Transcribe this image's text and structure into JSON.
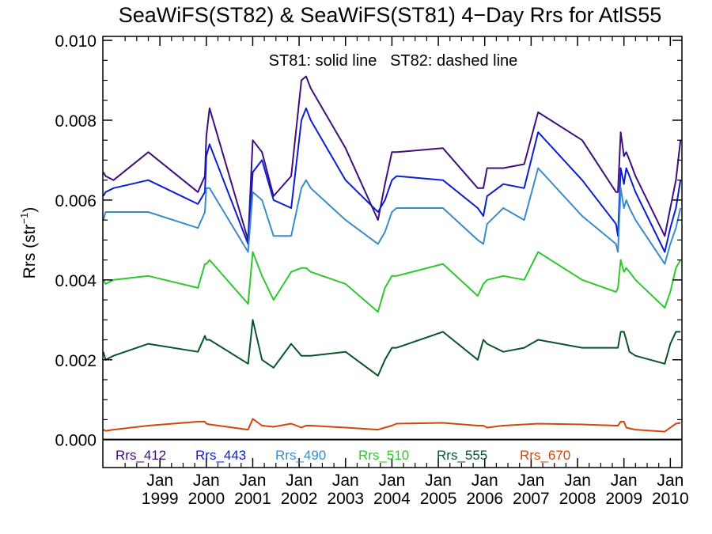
{
  "chart_data": {
    "type": "line",
    "title": "SeaWiFS(ST82) & SeaWiFS(ST81) 4−Day Rrs for AtlS55",
    "note": "ST81: solid line   ST82: dashed line",
    "xlabel": "",
    "ylabel": "Rrs (str",
    "ylabel_sup": "−1",
    "ylabel_close": ")",
    "ylim": [
      -0.0007,
      0.0101
    ],
    "xlim": [
      1997.77,
      2010.25
    ],
    "y_ticks": [
      {
        "v": 0.0,
        "label": "0.000"
      },
      {
        "v": 0.002,
        "label": "0.002"
      },
      {
        "v": 0.004,
        "label": "0.004"
      },
      {
        "v": 0.006,
        "label": "0.006"
      },
      {
        "v": 0.008,
        "label": "0.008"
      },
      {
        "v": 0.01,
        "label": "0.010"
      }
    ],
    "x_ticks": [
      {
        "v": 1999.0,
        "month": "Jan",
        "year": "1999"
      },
      {
        "v": 2000.0,
        "month": "Jan",
        "year": "2000"
      },
      {
        "v": 2001.0,
        "month": "Jan",
        "year": "2001"
      },
      {
        "v": 2002.0,
        "month": "Jan",
        "year": "2002"
      },
      {
        "v": 2003.0,
        "month": "Jan",
        "year": "2003"
      },
      {
        "v": 2004.0,
        "month": "Jan",
        "year": "2004"
      },
      {
        "v": 2005.0,
        "month": "Jan",
        "year": "2005"
      },
      {
        "v": 2006.0,
        "month": "Jan",
        "year": "2006"
      },
      {
        "v": 2007.0,
        "month": "Jan",
        "year": "2007"
      },
      {
        "v": 2008.0,
        "month": "Jan",
        "year": "2008"
      },
      {
        "v": 2009.0,
        "month": "Jan",
        "year": "2009"
      },
      {
        "v": 2010.0,
        "month": "Jan",
        "year": "2010"
      }
    ],
    "x": [
      1997.78,
      1997.83,
      1998.0,
      1998.75,
      1999.82,
      1999.97,
      2000.0,
      2000.07,
      2000.9,
      2001.0,
      2001.2,
      2001.45,
      2001.83,
      2002.05,
      2002.15,
      2002.25,
      2003.0,
      2003.7,
      2003.85,
      2004.0,
      2004.1,
      2005.1,
      2005.85,
      2005.97,
      2006.05,
      2006.4,
      2006.85,
      2007.15,
      2008.1,
      2008.83,
      2008.87,
      2008.93,
      2009.0,
      2009.05,
      2009.12,
      2009.25,
      2009.88,
      2010.0,
      2010.12,
      2010.22
    ],
    "series": [
      {
        "name": "Rrs_412",
        "color": "#3f0f7a",
        "values": [
          0.0067,
          0.0066,
          0.0065,
          0.0072,
          0.0062,
          0.0066,
          0.0076,
          0.0083,
          0.005,
          0.0075,
          0.0072,
          0.0061,
          0.0066,
          0.009,
          0.0091,
          0.0088,
          0.0073,
          0.0055,
          0.0064,
          0.0072,
          0.0072,
          0.0073,
          0.0063,
          0.0063,
          0.0068,
          0.0068,
          0.0069,
          0.0082,
          0.0075,
          0.0062,
          0.0062,
          0.0077,
          0.0071,
          0.0072,
          0.007,
          0.0066,
          0.0051,
          0.0058,
          0.0065,
          0.0075
        ]
      },
      {
        "name": "Rrs_443",
        "color": "#0a1ed2",
        "values": [
          0.0061,
          0.0062,
          0.0063,
          0.0065,
          0.0059,
          0.0062,
          0.0071,
          0.0074,
          0.0049,
          0.0067,
          0.007,
          0.006,
          0.0058,
          0.008,
          0.0083,
          0.008,
          0.0065,
          0.0057,
          0.006,
          0.0065,
          0.0066,
          0.0065,
          0.0058,
          0.0056,
          0.0061,
          0.0064,
          0.0063,
          0.0077,
          0.0065,
          0.0054,
          0.0051,
          0.0068,
          0.0064,
          0.0068,
          0.0066,
          0.0062,
          0.0047,
          0.0053,
          0.0058,
          0.0065
        ]
      },
      {
        "name": "Rrs_490",
        "color": "#3a8cc8",
        "values": [
          0.0055,
          0.0057,
          0.0057,
          0.0057,
          0.0053,
          0.0057,
          0.0063,
          0.0063,
          0.0047,
          0.0062,
          0.006,
          0.0051,
          0.0051,
          0.0063,
          0.0065,
          0.0063,
          0.0055,
          0.0049,
          0.0052,
          0.0057,
          0.0058,
          0.0058,
          0.005,
          0.0049,
          0.0054,
          0.0058,
          0.0055,
          0.0068,
          0.0056,
          0.0049,
          0.0047,
          0.0063,
          0.0058,
          0.006,
          0.0058,
          0.0055,
          0.0044,
          0.0049,
          0.0053,
          0.0058
        ]
      },
      {
        "name": "Rrs_510",
        "color": "#2ec82e",
        "values": [
          0.004,
          0.0039,
          0.004,
          0.0041,
          0.0038,
          0.0044,
          0.0044,
          0.0045,
          0.0034,
          0.0047,
          0.0041,
          0.0035,
          0.0042,
          0.0043,
          0.0043,
          0.0042,
          0.0039,
          0.0032,
          0.0038,
          0.0041,
          0.0041,
          0.0044,
          0.0036,
          0.0039,
          0.004,
          0.0041,
          0.004,
          0.0047,
          0.004,
          0.0037,
          0.0038,
          0.0045,
          0.0042,
          0.0043,
          0.0042,
          0.004,
          0.0033,
          0.0037,
          0.0043,
          0.0045
        ]
      },
      {
        "name": "Rrs_555",
        "color": "#0a5528",
        "values": [
          0.0022,
          0.002,
          0.0021,
          0.0024,
          0.0022,
          0.0026,
          0.0025,
          0.0025,
          0.0019,
          0.003,
          0.002,
          0.0018,
          0.0024,
          0.0021,
          0.0021,
          0.0021,
          0.0022,
          0.0016,
          0.002,
          0.0023,
          0.0023,
          0.0027,
          0.002,
          0.0025,
          0.0024,
          0.0022,
          0.0023,
          0.0025,
          0.0023,
          0.0023,
          0.0023,
          0.0027,
          0.0027,
          0.0025,
          0.0022,
          0.0021,
          0.0019,
          0.0024,
          0.0027,
          0.0027
        ]
      },
      {
        "name": "Rrs_670",
        "color": "#d2460a",
        "values": [
          0.00025,
          0.00022,
          0.00025,
          0.00035,
          0.00045,
          0.00045,
          0.0004,
          0.00038,
          0.00025,
          0.00052,
          0.00035,
          0.00032,
          0.0004,
          0.0003,
          0.00035,
          0.00035,
          0.0003,
          0.00025,
          0.0003,
          0.00035,
          0.0004,
          0.00042,
          0.00035,
          0.00035,
          0.0003,
          0.00035,
          0.00038,
          0.0004,
          0.00038,
          0.00035,
          0.00035,
          0.00045,
          0.00045,
          0.0003,
          0.00028,
          0.00025,
          0.0002,
          0.0003,
          0.0004,
          0.00042
        ]
      }
    ]
  }
}
